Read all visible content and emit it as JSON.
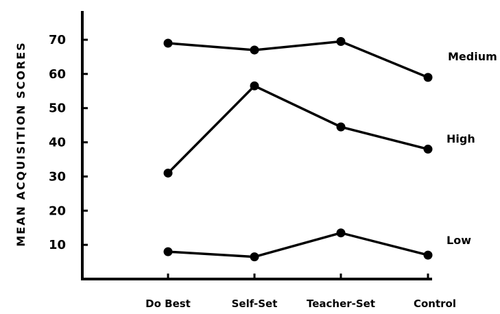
{
  "chart_data": {
    "type": "line",
    "title": "",
    "xlabel": "",
    "ylabel": "MEAN ACQUISITION SCORES",
    "ylim": [
      0,
      75
    ],
    "yticks": [
      10,
      20,
      30,
      40,
      50,
      60,
      70
    ],
    "categories": [
      "Do Best",
      "Self-Set",
      "Teacher-Set",
      "Control"
    ],
    "grid": false,
    "legend": "none",
    "series": [
      {
        "name": "Medium",
        "values": [
          69,
          67,
          69.5,
          59
        ]
      },
      {
        "name": "High",
        "values": [
          31,
          56.5,
          44.5,
          38
        ]
      },
      {
        "name": "Low",
        "values": [
          8,
          6.5,
          13.5,
          7
        ]
      }
    ],
    "colors": {
      "line": "#000000",
      "background": "#ffffff"
    }
  }
}
